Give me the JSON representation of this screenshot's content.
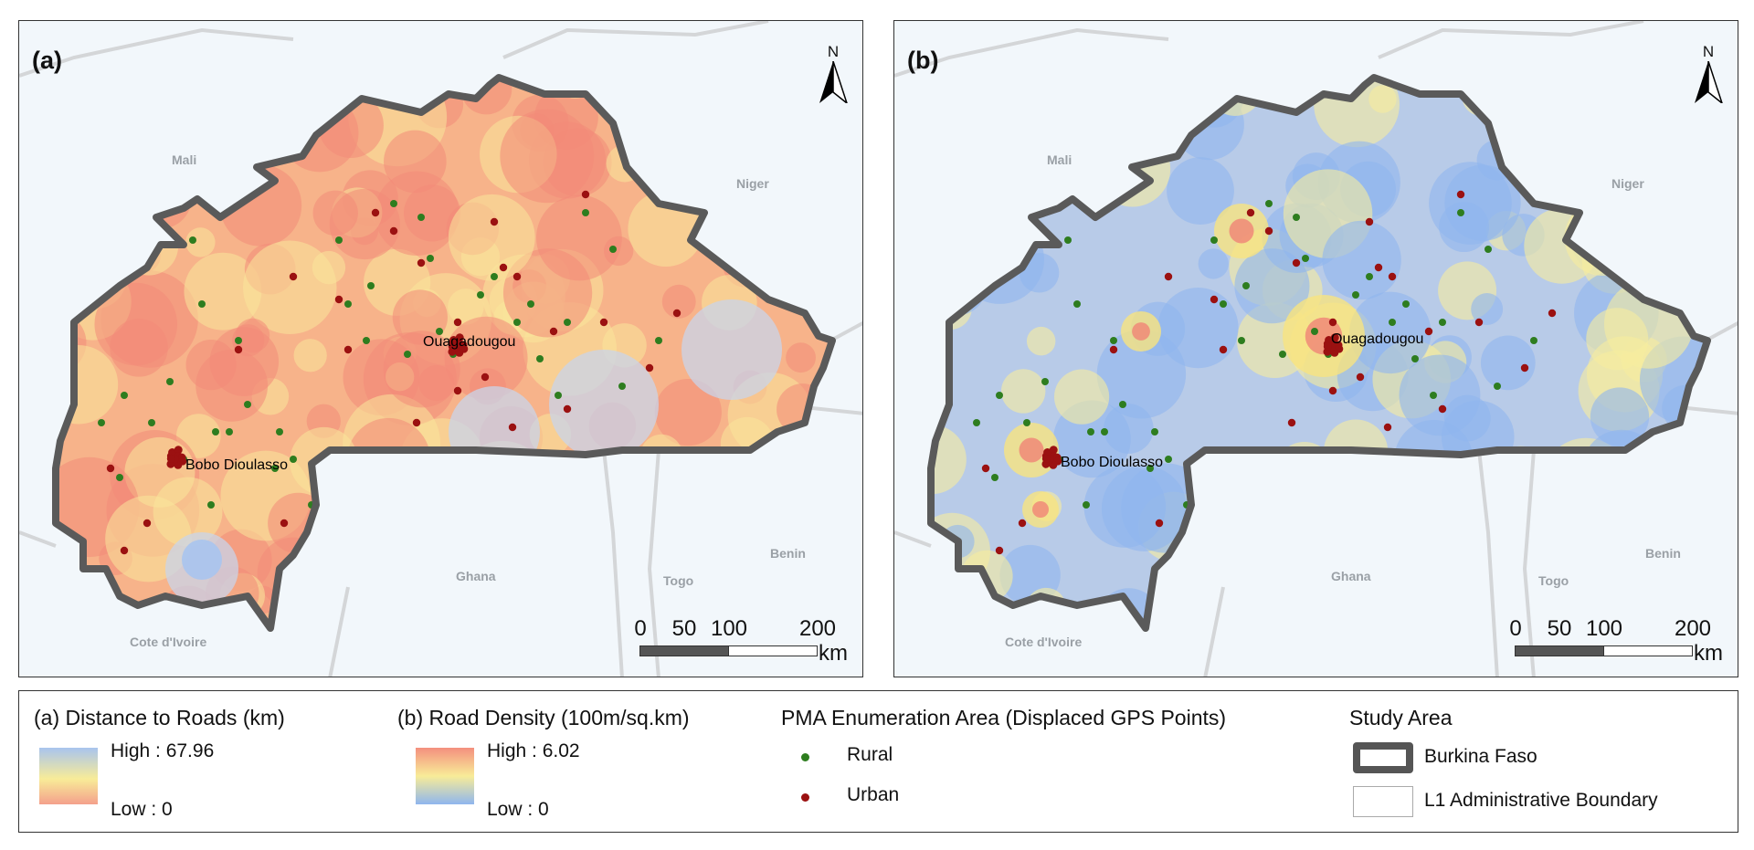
{
  "panels": [
    {
      "label": "(a)",
      "north": "N",
      "cities": [
        "Ouagadougou",
        "Bobo Dioulasso"
      ],
      "countries": [
        "Mali",
        "Niger",
        "Ghana",
        "Togo",
        "Benin",
        "Cote d'Ivoire"
      ],
      "scale": {
        "ticks": [
          "0",
          "50",
          "100",
          "200"
        ],
        "unit": "km"
      },
      "theme": "distance"
    },
    {
      "label": "(b)",
      "north": "N",
      "cities": [
        "Ouagadougou",
        "Bobo Dioulasso"
      ],
      "countries": [
        "Mali",
        "Niger",
        "Ghana",
        "Togo",
        "Benin",
        "Cote d'Ivoire"
      ],
      "scale": {
        "ticks": [
          "0",
          "50",
          "100",
          "200"
        ],
        "unit": "km"
      },
      "theme": "density"
    }
  ],
  "legend": {
    "distance": {
      "title": "(a) Distance to Roads (km)",
      "high": "High : 67.96",
      "low": "Low : 0"
    },
    "density": {
      "title": "(b) Road Density (100m/sq.km)",
      "high": "High : 6.02",
      "low": "Low : 0"
    },
    "points": {
      "title": "PMA Enumeration Area (Displaced GPS Points)",
      "rural": "Rural",
      "urban": "Urban"
    },
    "study_area": {
      "title": "Study Area",
      "country": "Burkina Faso",
      "boundary": "L1 Administrative Boundary"
    }
  },
  "colors": {
    "rural": "#2e7d1f",
    "urban": "#9b1111",
    "boundary": "#5a5a5a",
    "high_red": "#f08a78",
    "mid_yellow": "#f8ec98",
    "low_blue": "#8fb6ee"
  }
}
